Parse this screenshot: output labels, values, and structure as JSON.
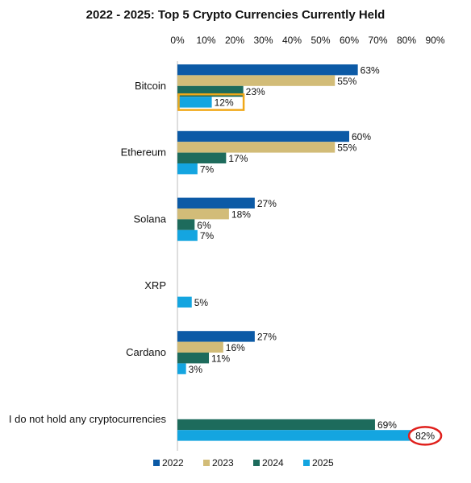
{
  "chart_data": {
    "type": "bar",
    "orientation": "horizontal",
    "title": "2022 - 2025: Top 5 Crypto Currencies Currently Held",
    "xlabel": "",
    "ylabel": "",
    "xlim": [
      0,
      90
    ],
    "x_ticks": [
      "0%",
      "10%",
      "20%",
      "30%",
      "40%",
      "50%",
      "60%",
      "70%",
      "80%",
      "90%"
    ],
    "categories": [
      "Bitcoin",
      "Ethereum",
      "Solana",
      "XRP",
      "Cardano",
      "I do not hold any cryptocurrencies"
    ],
    "series": [
      {
        "name": "2022",
        "color": "#0c5aa6",
        "values": [
          63,
          60,
          27,
          null,
          27,
          null
        ]
      },
      {
        "name": "2023",
        "color": "#d2bc78",
        "values": [
          55,
          55,
          18,
          null,
          16,
          null
        ]
      },
      {
        "name": "2024",
        "color": "#1d6b5c",
        "values": [
          23,
          17,
          6,
          null,
          11,
          69
        ]
      },
      {
        "name": "2025",
        "color": "#14a5e0",
        "values": [
          12,
          7,
          7,
          5,
          3,
          82
        ]
      }
    ],
    "grid": false,
    "legend_position": "bottom",
    "highlights": [
      {
        "category": "Bitcoin",
        "series": "2025",
        "style": "box",
        "color": "#f0a818"
      },
      {
        "category": "I do not hold any cryptocurrencies",
        "series": "2025",
        "style": "ellipse",
        "color": "#e0201c"
      }
    ]
  }
}
